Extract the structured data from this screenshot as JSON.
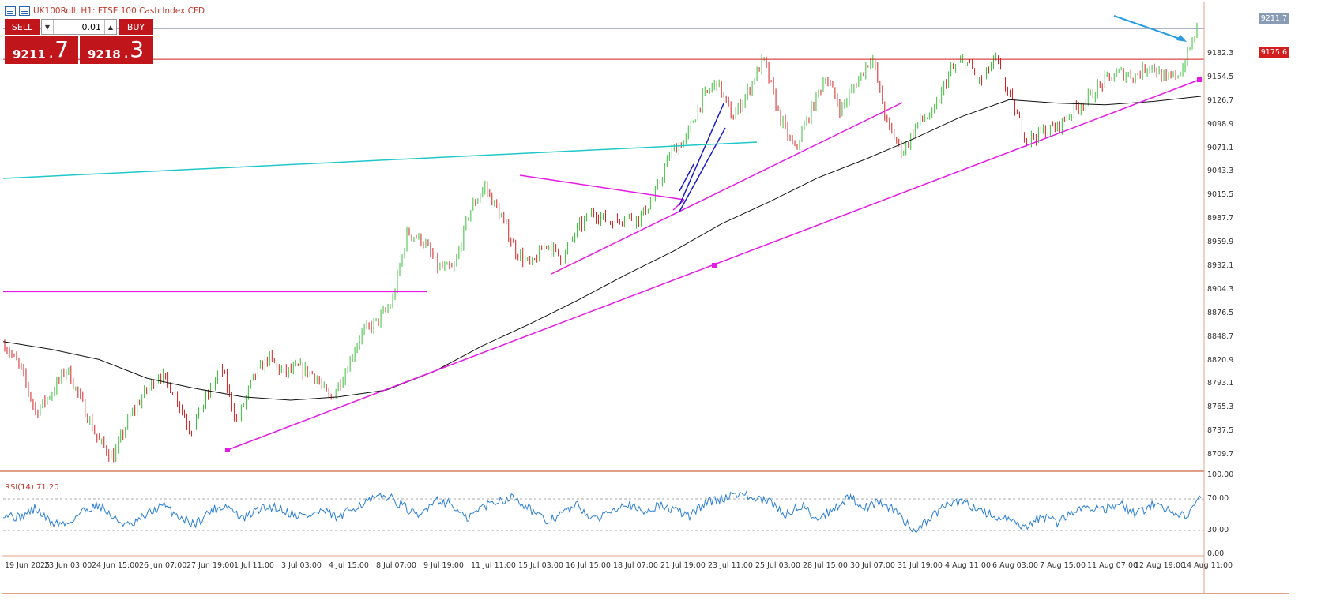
{
  "window": {
    "symbol": "UK100Roll",
    "timeframe": "H1",
    "description": "FTSE 100 Cash Index CFD",
    "title": "UK100Roll, H1:  FTSE 100 Cash Index CFD"
  },
  "trade_panel": {
    "sell_label": "SELL",
    "buy_label": "BUY",
    "lot_value": "0.01",
    "sell_price_main": "9211",
    "sell_price_big": "7",
    "buy_price_main": "9218",
    "buy_price_big": "3",
    "down_arrow": "▼",
    "up_arrow": "▲"
  },
  "price_axis": {
    "labels": [
      "9182.3",
      "9154.5",
      "9126.7",
      "9098.9",
      "9071.1",
      "9043.3",
      "9015.5",
      "8987.7",
      "8959.9",
      "8932.1",
      "8904.3",
      "8876.5",
      "8848.7",
      "8820.9",
      "8793.1",
      "8765.3",
      "8737.5",
      "8709.7"
    ],
    "current_bid": "9211.7",
    "red_line_level": "9175.6"
  },
  "time_axis": {
    "labels": [
      "19 Jun 2025",
      "23 Jun 03:00",
      "24 Jun 15:00",
      "26 Jun 07:00",
      "27 Jun 19:00",
      "1 Jul 11:00",
      "3 Jul 03:00",
      "4 Jul 15:00",
      "8 Jul 07:00",
      "9 Jul 19:00",
      "11 Jul 11:00",
      "15 Jul 03:00",
      "16 Jul 15:00",
      "18 Jul 07:00",
      "21 Jul 19:00",
      "23 Jul 11:00",
      "25 Jul 03:00",
      "28 Jul 15:00",
      "30 Jul 07:00",
      "31 Jul 19:00",
      "4 Aug 11:00",
      "6 Aug 03:00",
      "7 Aug 15:00",
      "11 Aug 07:00",
      "12 Aug 19:00",
      "14 Aug 11:00"
    ]
  },
  "rsi": {
    "label": "RSI(14) 71.20",
    "axis_labels": [
      "100.00",
      "70.00",
      "30.00",
      "0.00"
    ]
  },
  "colors": {
    "bull_candle": "#3bbf3b",
    "bear_candle": "#d32222",
    "moving_average": "#111111",
    "trendline": "#e619e6",
    "channel": "#1a1acc",
    "cyan_line": "#1ec8c8",
    "arrow": "#2a9de0",
    "rsi_line": "#2a7fd6",
    "current_price_line": "#8a9bb5",
    "red_level_line": "#d21e1e"
  },
  "chart_data": {
    "type": "candlestick",
    "symbol": "UK100Roll",
    "timeframe": "H1",
    "x_range": [
      "19 Jun 2025",
      "14 Aug 11:00"
    ],
    "ylim": [
      8695,
      9225
    ],
    "bid": 9211.7,
    "ask": 9218.3,
    "close_path": [
      {
        "x": "19 Jun 2025",
        "y": 8840
      },
      {
        "x": "20 Jun",
        "y": 8812
      },
      {
        "x": "23 Jun 03:00",
        "y": 8760
      },
      {
        "x": "23 Jun",
        "y": 8782
      },
      {
        "x": "24 Jun 03:00",
        "y": 8812
      },
      {
        "x": "24 Jun 15:00",
        "y": 8770
      },
      {
        "x": "25 Jun",
        "y": 8728
      },
      {
        "x": "25 Jun 19:00",
        "y": 8706
      },
      {
        "x": "26 Jun 07:00",
        "y": 8752
      },
      {
        "x": "26 Jun 19:00",
        "y": 8782
      },
      {
        "x": "27 Jun",
        "y": 8806
      },
      {
        "x": "27 Jun 19:00",
        "y": 8782
      },
      {
        "x": "30 Jun",
        "y": 8738
      },
      {
        "x": "1 Jul 03:00",
        "y": 8776
      },
      {
        "x": "1 Jul 11:00",
        "y": 8812
      },
      {
        "x": "1 Jul 19:00",
        "y": 8748
      },
      {
        "x": "2 Jul",
        "y": 8798
      },
      {
        "x": "3 Jul 03:00",
        "y": 8824
      },
      {
        "x": "3 Jul 15:00",
        "y": 8806
      },
      {
        "x": "4 Jul",
        "y": 8812
      },
      {
        "x": "4 Jul 15:00",
        "y": 8804
      },
      {
        "x": "7 Jul",
        "y": 8774
      },
      {
        "x": "7 Jul 19:00",
        "y": 8808
      },
      {
        "x": "8 Jul 07:00",
        "y": 8852
      },
      {
        "x": "8 Jul 19:00",
        "y": 8866
      },
      {
        "x": "9 Jul 07:00",
        "y": 8888
      },
      {
        "x": "9 Jul 19:00",
        "y": 8972
      },
      {
        "x": "10 Jul",
        "y": 8962
      },
      {
        "x": "10 Jul 11:00",
        "y": 8930
      },
      {
        "x": "11 Jul 11:00",
        "y": 8928
      },
      {
        "x": "11 Jul 19:00",
        "y": 8996
      },
      {
        "x": "14 Jul",
        "y": 9026
      },
      {
        "x": "14 Jul 19:00",
        "y": 8992
      },
      {
        "x": "15 Jul 03:00",
        "y": 8950
      },
      {
        "x": "15 Jul 19:00",
        "y": 8932
      },
      {
        "x": "16 Jul 03:00",
        "y": 8960
      },
      {
        "x": "16 Jul 15:00",
        "y": 8940
      },
      {
        "x": "17 Jul",
        "y": 8976
      },
      {
        "x": "18 Jul 07:00",
        "y": 8996
      },
      {
        "x": "18 Jul 19:00",
        "y": 8984
      },
      {
        "x": "21 Jul",
        "y": 8990
      },
      {
        "x": "21 Jul 19:00",
        "y": 8988
      },
      {
        "x": "22 Jul 07:00",
        "y": 9016
      },
      {
        "x": "22 Jul 19:00",
        "y": 9066
      },
      {
        "x": "23 Jul 03:00",
        "y": 9082
      },
      {
        "x": "23 Jul 11:00",
        "y": 9128
      },
      {
        "x": "24 Jul",
        "y": 9150
      },
      {
        "x": "24 Jul 19:00",
        "y": 9106
      },
      {
        "x": "25 Jul 03:00",
        "y": 9138
      },
      {
        "x": "25 Jul 19:00",
        "y": 9176
      },
      {
        "x": "28 Jul 03:00",
        "y": 9110
      },
      {
        "x": "28 Jul 15:00",
        "y": 9068
      },
      {
        "x": "29 Jul",
        "y": 9112
      },
      {
        "x": "29 Jul 15:00",
        "y": 9156
      },
      {
        "x": "30 Jul 07:00",
        "y": 9116
      },
      {
        "x": "30 Jul 19:00",
        "y": 9148
      },
      {
        "x": "31 Jul 07:00",
        "y": 9180
      },
      {
        "x": "31 Jul 19:00",
        "y": 9098
      },
      {
        "x": "1 Aug",
        "y": 9066
      },
      {
        "x": "1 Aug 15:00",
        "y": 9102
      },
      {
        "x": "4 Aug 11:00",
        "y": 9112
      },
      {
        "x": "4 Aug 19:00",
        "y": 9160
      },
      {
        "x": "5 Aug",
        "y": 9176
      },
      {
        "x": "5 Aug 15:00",
        "y": 9148
      },
      {
        "x": "6 Aug 03:00",
        "y": 9176
      },
      {
        "x": "6 Aug 19:00",
        "y": 9126
      },
      {
        "x": "7 Aug 03:00",
        "y": 9080
      },
      {
        "x": "7 Aug 15:00",
        "y": 9090
      },
      {
        "x": "8 Aug",
        "y": 9096
      },
      {
        "x": "11 Aug",
        "y": 9116
      },
      {
        "x": "11 Aug 07:00",
        "y": 9130
      },
      {
        "x": "11 Aug 19:00",
        "y": 9150
      },
      {
        "x": "12 Aug 07:00",
        "y": 9160
      },
      {
        "x": "12 Aug 19:00",
        "y": 9156
      },
      {
        "x": "13 Aug",
        "y": 9170
      },
      {
        "x": "13 Aug 15:00",
        "y": 9150
      },
      {
        "x": "14 Aug 03:00",
        "y": 9162
      },
      {
        "x": "14 Aug 11:00",
        "y": 9211.7
      }
    ],
    "moving_average": [
      {
        "x": "19 Jun 2025",
        "y": 8843
      },
      {
        "x": "23 Jun 03:00",
        "y": 8834
      },
      {
        "x": "24 Jun 15:00",
        "y": 8822
      },
      {
        "x": "26 Jun 07:00",
        "y": 8800
      },
      {
        "x": "27 Jun 19:00",
        "y": 8788
      },
      {
        "x": "1 Jul 11:00",
        "y": 8778
      },
      {
        "x": "3 Jul 03:00",
        "y": 8774
      },
      {
        "x": "4 Jul 15:00",
        "y": 8778
      },
      {
        "x": "8 Jul 07:00",
        "y": 8786
      },
      {
        "x": "9 Jul 19:00",
        "y": 8808
      },
      {
        "x": "11 Jul 11:00",
        "y": 8838
      },
      {
        "x": "15 Jul 03:00",
        "y": 8864
      },
      {
        "x": "16 Jul 15:00",
        "y": 8892
      },
      {
        "x": "18 Jul 07:00",
        "y": 8922
      },
      {
        "x": "21 Jul 19:00",
        "y": 8950
      },
      {
        "x": "23 Jul 11:00",
        "y": 8982
      },
      {
        "x": "25 Jul 03:00",
        "y": 9008
      },
      {
        "x": "28 Jul 15:00",
        "y": 9036
      },
      {
        "x": "30 Jul 07:00",
        "y": 9058
      },
      {
        "x": "31 Jul 19:00",
        "y": 9082
      },
      {
        "x": "4 Aug 11:00",
        "y": 9108
      },
      {
        "x": "6 Aug 03:00",
        "y": 9128
      },
      {
        "x": "7 Aug 15:00",
        "y": 9124
      },
      {
        "x": "11 Aug 07:00",
        "y": 9122
      },
      {
        "x": "12 Aug 19:00",
        "y": 9126
      },
      {
        "x": "14 Aug 11:00",
        "y": 9132
      }
    ],
    "rsi": {
      "period": 14,
      "last": 71.2,
      "levels": [
        70,
        30
      ],
      "range": [
        0,
        100
      ],
      "path": [
        52,
        46,
        58,
        40,
        38,
        55,
        63,
        44,
        35,
        50,
        62,
        48,
        38,
        55,
        62,
        44,
        57,
        60,
        52,
        48,
        55,
        45,
        60,
        68,
        74,
        62,
        46,
        70,
        64,
        44,
        60,
        68,
        72,
        58,
        40,
        52,
        62,
        42,
        56,
        66,
        52,
        62,
        56,
        48,
        66,
        70,
        78,
        70,
        66,
        50,
        62,
        44,
        58,
        72,
        60,
        66,
        52,
        30,
        44,
        62,
        66,
        58,
        48,
        42,
        32,
        48,
        40,
        54,
        60,
        58,
        62,
        50,
        64,
        56,
        48,
        71.2
      ]
    },
    "horizontal_levels": [
      9211.7,
      9175.6,
      8902
    ],
    "annotations": [
      "magenta trendlines",
      "blue channel",
      "cyan line",
      "blue arrow"
    ]
  }
}
